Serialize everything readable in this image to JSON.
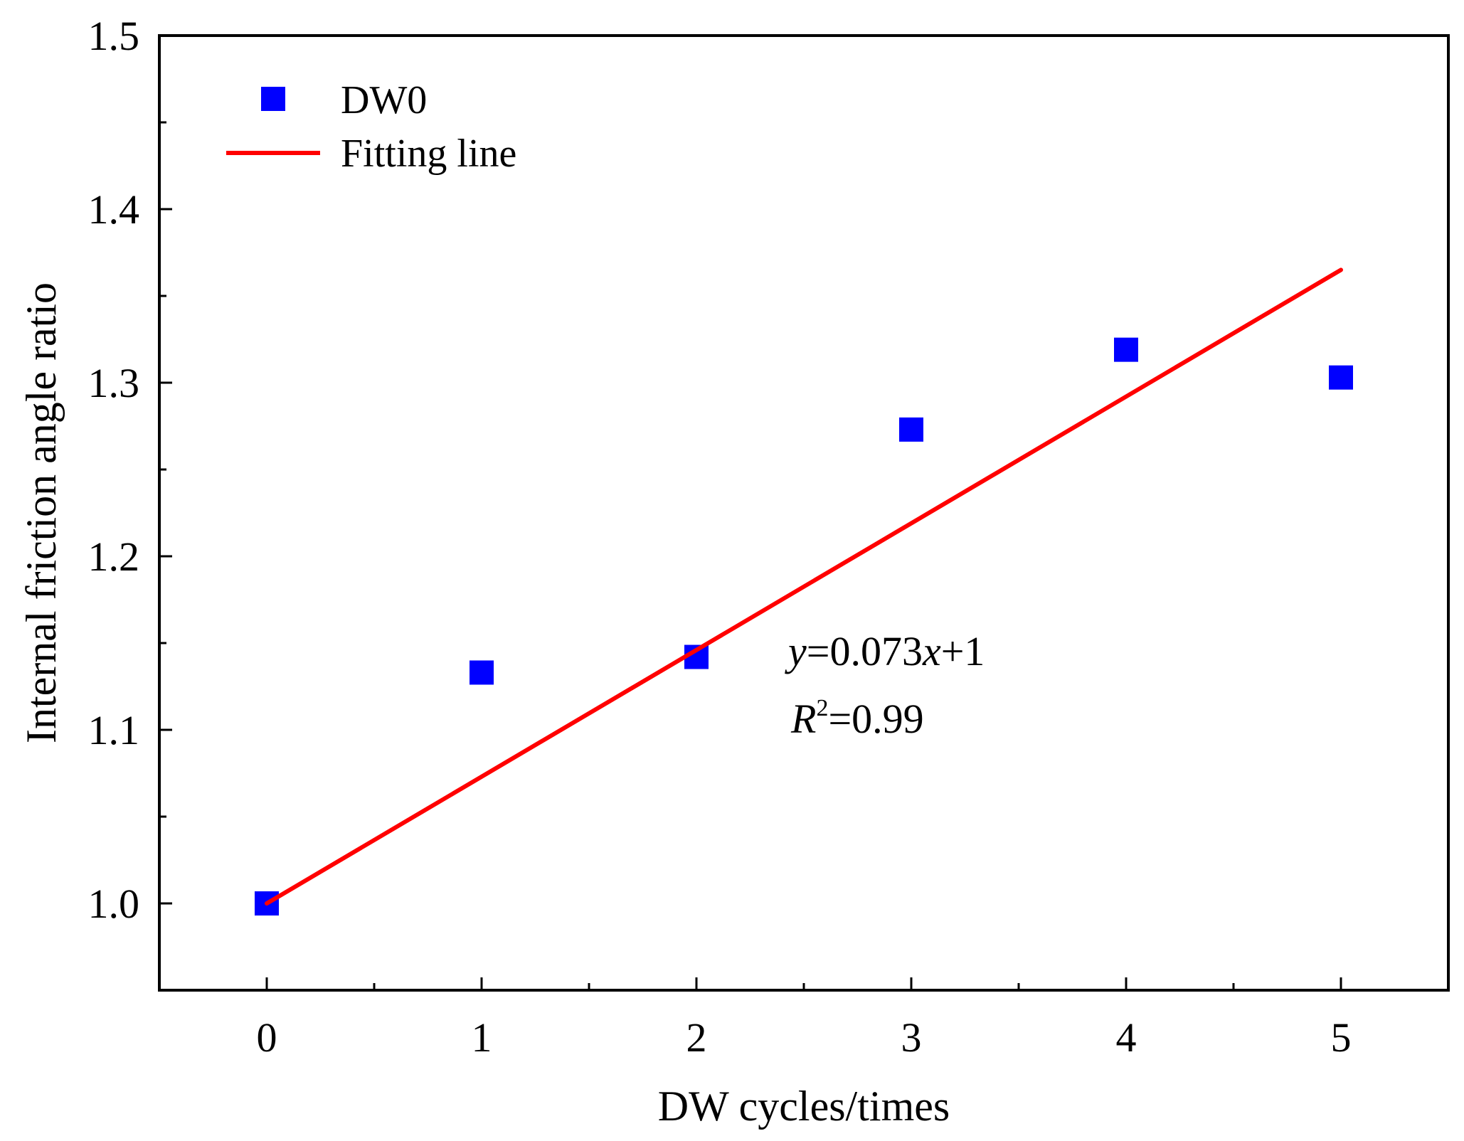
{
  "chart_data": {
    "type": "scatter",
    "xlabel": "DW cycles/times",
    "ylabel": "Internal friction angle ratio",
    "xlim": [
      -0.5,
      5.5
    ],
    "ylim": [
      0.95,
      1.5
    ],
    "x_ticks": [
      "0",
      "1",
      "2",
      "3",
      "4",
      "5"
    ],
    "y_ticks": [
      "1.0",
      "1.1",
      "1.2",
      "1.3",
      "1.4",
      "1.5"
    ],
    "grid": false,
    "legend_position": "top-left",
    "series": [
      {
        "name": "DW0",
        "kind": "scatter",
        "marker": "square",
        "color": "#0000ff",
        "x": [
          0,
          1,
          2,
          3,
          4,
          5
        ],
        "y": [
          1.0,
          1.133,
          1.142,
          1.273,
          1.319,
          1.303
        ]
      },
      {
        "name": "Fitting line",
        "kind": "line",
        "color": "#ff0000",
        "x": [
          0,
          5
        ],
        "y": [
          1.0,
          1.365
        ]
      }
    ],
    "annotation": {
      "equation_y": "y",
      "equation_rest": "=0.073",
      "equation_x": "x",
      "equation_end": "+1",
      "r2_r": "R",
      "r2_sup": "2",
      "r2_value": "=0.99"
    }
  }
}
